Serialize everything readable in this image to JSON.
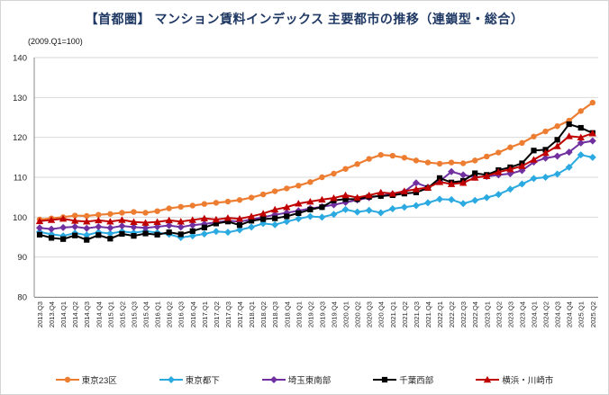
{
  "title": "【首都圏】 マンション賃料インデックス 主要都市の推移（連鎖型・総合）",
  "subtitle": "(2009.Q1=100)",
  "colors": {
    "title": "#1F3864",
    "gridline": "#D9D9D9",
    "axis_line": "#898989",
    "tick_label": "#262626"
  },
  "chart_data": {
    "type": "line",
    "title": "【首都圏】 マンション賃料インデックス 主要都市の推移（連鎖型・総合）",
    "subtitle": "(2009.Q1=100)",
    "ylim": [
      80,
      140
    ],
    "ytick_step": 10,
    "grid": true,
    "legend_position": "bottom",
    "categories": [
      "2013.Q3",
      "2013.Q4",
      "2014.Q1",
      "2014.Q2",
      "2014.Q3",
      "2014.Q4",
      "2015.Q1",
      "2015.Q2",
      "2015.Q3",
      "2015.Q4",
      "2016.Q1",
      "2016.Q2",
      "2016.Q3",
      "2016.Q4",
      "2017.Q1",
      "2017.Q2",
      "2017.Q3",
      "2017.Q4",
      "2018.Q1",
      "2018.Q2",
      "2018.Q3",
      "2018.Q4",
      "2019.Q1",
      "2019.Q2",
      "2019.Q3",
      "2019.Q4",
      "2020.Q1",
      "2020.Q2",
      "2020.Q3",
      "2020.Q4",
      "2021.Q1",
      "2021.Q2",
      "2021.Q3",
      "2021.Q4",
      "2022.Q1",
      "2022.Q2",
      "2022.Q3",
      "2022.Q4",
      "2023.Q1",
      "2023.Q2",
      "2023.Q3",
      "2023.Q4",
      "2024.Q1",
      "2024.Q2",
      "2024.Q3",
      "2024.Q4",
      "2025.Q1",
      "2025.Q2"
    ],
    "series": [
      {
        "name": "東京23区",
        "color": "#ED7D31",
        "marker": "circle",
        "values": [
          99.4,
          99.7,
          100.0,
          100.4,
          100.3,
          100.6,
          100.8,
          101.1,
          101.3,
          101.1,
          101.5,
          102.2,
          102.6,
          102.9,
          103.3,
          103.6,
          103.9,
          104.3,
          104.9,
          105.7,
          106.5,
          107.2,
          107.9,
          108.8,
          110.0,
          110.9,
          112.1,
          113.3,
          114.6,
          115.6,
          115.4,
          114.9,
          114.2,
          113.7,
          113.4,
          113.7,
          113.5,
          114.2,
          115.2,
          116.2,
          117.5,
          118.6,
          120.2,
          121.5,
          122.8,
          124.2,
          126.6,
          128.7
        ]
      },
      {
        "name": "東京都下",
        "color": "#2BA9E1",
        "marker": "diamond",
        "values": [
          96.3,
          95.7,
          95.3,
          96.0,
          95.5,
          96.2,
          95.9,
          96.4,
          96.1,
          96.5,
          96.1,
          95.7,
          94.9,
          95.3,
          95.8,
          96.4,
          96.2,
          96.8,
          97.5,
          98.4,
          98.1,
          98.9,
          99.6,
          100.2,
          100.0,
          100.7,
          101.9,
          101.3,
          101.7,
          101.1,
          102.1,
          102.5,
          102.9,
          103.6,
          104.5,
          104.4,
          103.4,
          104.2,
          104.9,
          105.7,
          107.0,
          108.3,
          109.7,
          110.0,
          110.8,
          112.5,
          115.6,
          115.0
        ]
      },
      {
        "name": "埼玉東南部",
        "color": "#7030A0",
        "marker": "diamond",
        "values": [
          97.3,
          97.0,
          97.4,
          97.6,
          97.2,
          97.6,
          97.3,
          97.8,
          97.5,
          97.3,
          97.6,
          97.9,
          97.5,
          98.0,
          98.3,
          98.7,
          99.1,
          98.9,
          99.4,
          100.0,
          100.6,
          101.1,
          101.6,
          102.2,
          102.6,
          103.1,
          103.7,
          104.3,
          104.9,
          105.4,
          105.8,
          106.4,
          108.6,
          107.5,
          109.0,
          111.4,
          110.6,
          110.0,
          110.2,
          110.6,
          110.9,
          111.7,
          113.8,
          114.8,
          115.3,
          116.3,
          118.6,
          119.1
        ]
      },
      {
        "name": "千葉西部",
        "color": "#000000",
        "marker": "square",
        "values": [
          95.6,
          94.8,
          94.5,
          95.4,
          94.3,
          95.5,
          94.6,
          95.8,
          95.3,
          95.9,
          95.6,
          96.2,
          95.7,
          96.5,
          97.4,
          98.4,
          98.9,
          98.0,
          99.1,
          99.5,
          99.7,
          100.2,
          101.0,
          101.9,
          102.5,
          104.2,
          104.5,
          104.5,
          105.1,
          105.3,
          105.5,
          105.9,
          106.2,
          107.3,
          109.8,
          108.7,
          109.1,
          111.0,
          110.6,
          111.8,
          112.5,
          113.5,
          116.7,
          116.9,
          119.4,
          123.3,
          122.4,
          121.1
        ]
      },
      {
        "name": "横浜・川崎市",
        "color": "#C00000",
        "marker": "triangle",
        "values": [
          99.0,
          99.3,
          99.6,
          99.1,
          98.9,
          99.2,
          98.9,
          99.3,
          98.8,
          98.6,
          98.8,
          99.2,
          98.9,
          99.3,
          99.7,
          99.4,
          99.8,
          99.6,
          100.2,
          100.9,
          101.9,
          102.5,
          103.4,
          103.9,
          104.4,
          104.8,
          105.5,
          104.9,
          105.5,
          106.2,
          105.9,
          106.5,
          107.0,
          107.4,
          108.8,
          108.3,
          108.6,
          109.9,
          110.3,
          111.3,
          112.0,
          112.8,
          114.4,
          116.1,
          117.8,
          120.3,
          120.0,
          121.0
        ]
      }
    ]
  }
}
